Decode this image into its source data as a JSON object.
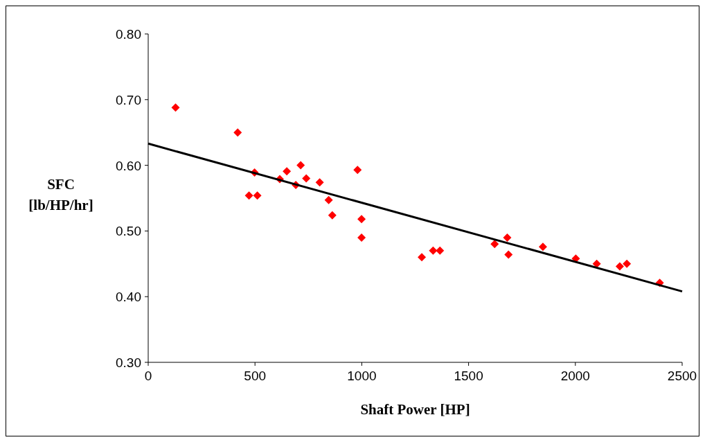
{
  "chart_data": {
    "type": "scatter",
    "xlabel": "Shaft Power [HP]",
    "ylabel": "SFC\n[lb/HP/hr]",
    "xlim": [
      0,
      2500
    ],
    "xticks": [
      0,
      500,
      1000,
      1500,
      2000,
      2500
    ],
    "ylim": [
      0.3,
      0.8
    ],
    "yticks": [
      {
        "value": 0.3,
        "label": "0.30"
      },
      {
        "value": 0.4,
        "label": "0.40"
      },
      {
        "value": 0.5,
        "label": "0.50"
      },
      {
        "value": 0.6,
        "label": "0.60"
      },
      {
        "value": 0.7,
        "label": "0.70"
      },
      {
        "value": 0.8,
        "label": "0.80"
      }
    ],
    "grid": false,
    "marker": "diamond",
    "series": [
      {
        "color": "#ff0000",
        "x": [
          128,
          419,
          498,
          472,
          511,
          616,
          649,
          691,
          714,
          740,
          803,
          845,
          862,
          980,
          999,
          999,
          1281,
          1334,
          1366,
          1622,
          1681,
          1687,
          1848,
          2002,
          2100,
          2208,
          2241,
          2395
        ],
        "values": [
          0.688,
          0.65,
          0.589,
          0.554,
          0.554,
          0.579,
          0.591,
          0.57,
          0.6,
          0.58,
          0.574,
          0.547,
          0.524,
          0.593,
          0.518,
          0.49,
          0.46,
          0.47,
          0.47,
          0.48,
          0.49,
          0.464,
          0.476,
          0.458,
          0.45,
          0.446,
          0.45,
          0.421
        ]
      },
      {
        "type": "line",
        "color": "#000000",
        "marker": "none",
        "x": [
          0,
          2500
        ],
        "values": [
          0.633,
          0.408
        ]
      }
    ]
  }
}
